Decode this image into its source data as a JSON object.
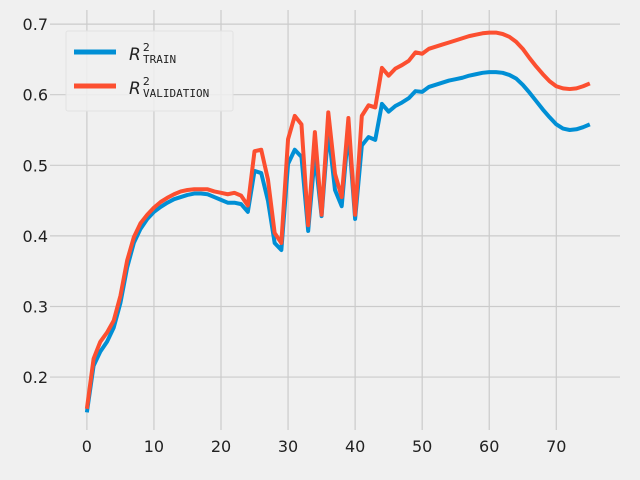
{
  "chart_data": {
    "type": "line",
    "title": "",
    "xlabel": "",
    "ylabel": "",
    "xlim": [
      -5.5,
      79.5
    ],
    "ylim": [
      0.125,
      0.72
    ],
    "xticks": [
      0,
      10,
      20,
      30,
      40,
      50,
      60,
      70
    ],
    "yticks": [
      0.2,
      0.3,
      0.4,
      0.5,
      0.6,
      0.7
    ],
    "grid": true,
    "legend_position": "top-left",
    "colors": {
      "background": "#f0f0f0",
      "grid": "#cbcbcb",
      "train": "#008fd5",
      "validation": "#fc4f30"
    },
    "x": [
      0,
      1,
      2,
      3,
      4,
      5,
      6,
      7,
      8,
      9,
      10,
      11,
      12,
      13,
      14,
      15,
      16,
      17,
      18,
      19,
      20,
      21,
      22,
      23,
      24,
      25,
      26,
      27,
      28,
      29,
      30,
      31,
      32,
      33,
      34,
      35,
      36,
      37,
      38,
      39,
      40,
      41,
      42,
      43,
      44,
      45,
      46,
      47,
      48,
      49,
      50,
      51,
      52,
      53,
      54,
      55,
      56,
      57,
      58,
      59,
      60,
      61,
      62,
      63,
      64,
      65,
      66,
      67,
      68,
      69,
      70,
      71,
      72,
      73,
      74,
      75
    ],
    "series": [
      {
        "name": "R2 TRAIN",
        "legend": {
          "main": "R",
          "sup": "2",
          "sub": "TRAIN"
        },
        "color": "#008fd5",
        "values": [
          0.15,
          0.216,
          0.236,
          0.25,
          0.27,
          0.305,
          0.355,
          0.39,
          0.41,
          0.424,
          0.434,
          0.441,
          0.447,
          0.452,
          0.455,
          0.458,
          0.46,
          0.46,
          0.459,
          0.455,
          0.451,
          0.447,
          0.447,
          0.445,
          0.434,
          0.492,
          0.489,
          0.45,
          0.39,
          0.38,
          0.502,
          0.522,
          0.512,
          0.407,
          0.515,
          0.428,
          0.55,
          0.465,
          0.442,
          0.55,
          0.424,
          0.528,
          0.54,
          0.536,
          0.587,
          0.576,
          0.584,
          0.589,
          0.595,
          0.605,
          0.604,
          0.611,
          0.614,
          0.617,
          0.62,
          0.622,
          0.624,
          0.627,
          0.629,
          0.631,
          0.632,
          0.632,
          0.631,
          0.628,
          0.623,
          0.614,
          0.603,
          0.591,
          0.579,
          0.568,
          0.558,
          0.552,
          0.55,
          0.551,
          0.554,
          0.558
        ]
      },
      {
        "name": "R2 VALIDATION",
        "legend": {
          "main": "R",
          "sup": "2",
          "sub": "VALIDATION"
        },
        "color": "#fc4f30",
        "values": [
          0.155,
          0.226,
          0.25,
          0.263,
          0.28,
          0.315,
          0.365,
          0.398,
          0.418,
          0.43,
          0.44,
          0.448,
          0.454,
          0.459,
          0.463,
          0.465,
          0.466,
          0.466,
          0.466,
          0.463,
          0.461,
          0.459,
          0.461,
          0.457,
          0.443,
          0.52,
          0.522,
          0.48,
          0.404,
          0.39,
          0.537,
          0.57,
          0.558,
          0.415,
          0.547,
          0.43,
          0.575,
          0.488,
          0.455,
          0.567,
          0.43,
          0.57,
          0.585,
          0.582,
          0.638,
          0.627,
          0.637,
          0.642,
          0.648,
          0.66,
          0.658,
          0.665,
          0.668,
          0.671,
          0.674,
          0.677,
          0.68,
          0.683,
          0.685,
          0.687,
          0.688,
          0.688,
          0.686,
          0.682,
          0.675,
          0.665,
          0.652,
          0.64,
          0.629,
          0.619,
          0.612,
          0.609,
          0.608,
          0.609,
          0.612,
          0.616
        ]
      }
    ]
  }
}
